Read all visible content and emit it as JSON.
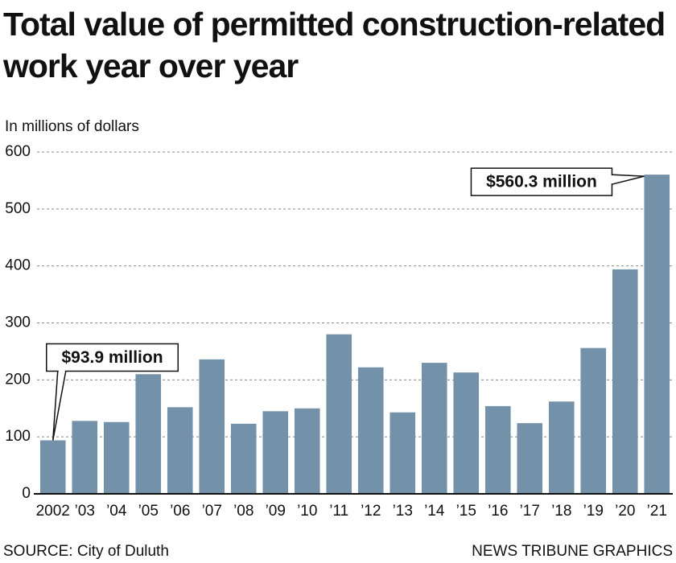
{
  "chart_data": {
    "type": "bar",
    "title": "Total value of permitted construction-related work year over year",
    "subtitle": "In millions of dollars",
    "source": "SOURCE: City of Duluth",
    "credit": "NEWS TRIBUNE GRAPHICS",
    "categories": [
      "2002",
      "’03",
      "’04",
      "’05",
      "’06",
      "’07",
      "’08",
      "’09",
      "’10",
      "’11",
      "’12",
      "’13",
      "’14",
      "’15",
      "’16",
      "’17",
      "’18",
      "’19",
      "’20",
      "’21"
    ],
    "values": [
      93.9,
      128,
      126,
      210,
      152,
      236,
      123,
      145,
      150,
      280,
      222,
      143,
      230,
      213,
      154,
      124,
      162,
      256,
      394,
      560.3
    ],
    "value_labels": [
      "$93.9 million",
      null,
      null,
      null,
      null,
      null,
      null,
      null,
      null,
      null,
      null,
      null,
      null,
      null,
      null,
      null,
      null,
      null,
      null,
      "$560.3 million"
    ],
    "color": "#7391a9",
    "ylim": [
      0,
      600
    ],
    "yticks": [
      0,
      100,
      200,
      300,
      400,
      500,
      600
    ],
    "grid": true
  }
}
